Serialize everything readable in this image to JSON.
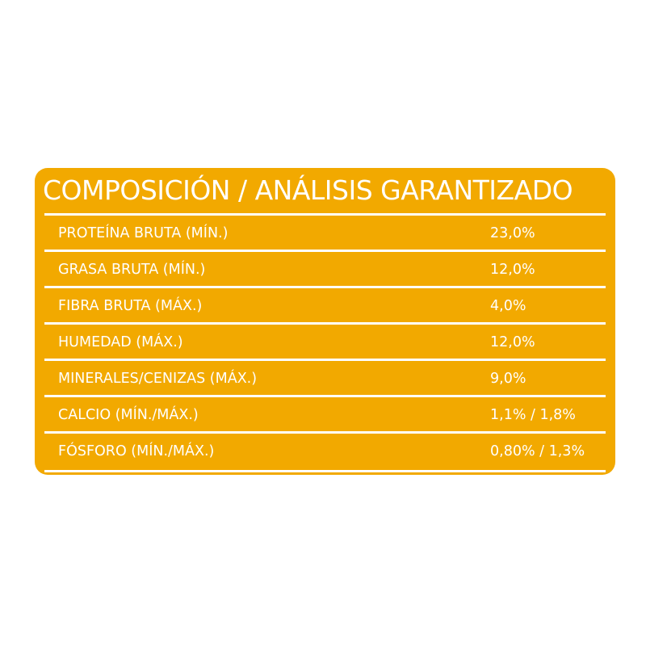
{
  "title": "COMPOSICIÓN / ANÁLISIS GARANTIZADO",
  "background_color": "#F2A900",
  "rows": [
    {
      "label": "PROTEÍNA BRUTA (MÍN.)",
      "value": "23,0%"
    },
    {
      "label": "GRASA BRUTA (MÍN.)",
      "value": "12,0%"
    },
    {
      "label": "FIBRA BRUTA (MÁX.)",
      "value": "4,0%"
    },
    {
      "label": "HUMEDAD (MÁX.)",
      "value": "12,0%"
    },
    {
      "label": "MINERALES/CENIZAS (MÁX.)",
      "value": "9,0%"
    },
    {
      "label": "CALCIO (MÍN./MÁX.)",
      "value": "1,1% / 1,8%"
    },
    {
      "label": "FÓSFORO (MÍN./MÁX.)",
      "value": "0,80% / 1,3%"
    }
  ]
}
